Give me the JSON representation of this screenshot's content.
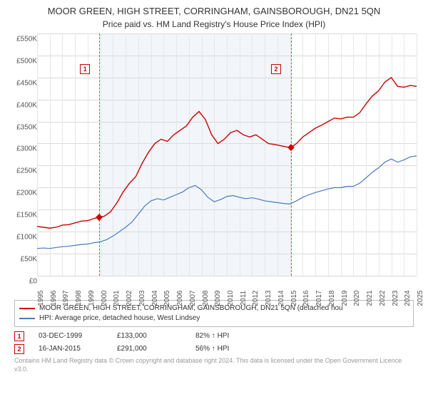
{
  "title": "MOOR GREEN, HIGH STREET, CORRINGHAM, GAINSBOROUGH, DN21 5QN",
  "subtitle": "Price paid vs. HM Land Registry's House Price Index (HPI)",
  "chart": {
    "type": "line",
    "ylim": [
      0,
      550
    ],
    "ytick_step": 50,
    "ylabel_prefix": "£",
    "ylabel_suffix": "K",
    "xrange": [
      1995,
      2025
    ],
    "xticks": [
      1995,
      1996,
      1997,
      1998,
      1999,
      2000,
      2001,
      2002,
      2003,
      2004,
      2005,
      2006,
      2007,
      2008,
      2009,
      2010,
      2011,
      2012,
      2013,
      2014,
      2015,
      2016,
      2017,
      2018,
      2019,
      2020,
      2021,
      2022,
      2023,
      2024,
      2025
    ],
    "grid_color": "#d9d9d9",
    "grid_color_v": "#e6e6e6",
    "background": "#ffffff",
    "shade_band": {
      "from": 1999.9,
      "to": 2015.05,
      "color": "#f2f6fa"
    },
    "series": [
      {
        "name": "MOOR GREEN, HIGH STREET, CORRINGHAM, GAINSBOROUGH, DN21 5QN (detached hou",
        "color": "#cc0000",
        "stroke_width": 1.4,
        "points": [
          [
            1995.0,
            112
          ],
          [
            1995.5,
            110
          ],
          [
            1996.0,
            108
          ],
          [
            1996.5,
            110
          ],
          [
            1997.0,
            115
          ],
          [
            1997.5,
            116
          ],
          [
            1998.0,
            120
          ],
          [
            1998.5,
            124
          ],
          [
            1999.0,
            125
          ],
          [
            1999.5,
            130
          ],
          [
            1999.9,
            133
          ],
          [
            2000.3,
            135
          ],
          [
            2000.8,
            145
          ],
          [
            2001.3,
            165
          ],
          [
            2001.8,
            190
          ],
          [
            2002.3,
            210
          ],
          [
            2002.8,
            225
          ],
          [
            2003.3,
            255
          ],
          [
            2003.8,
            280
          ],
          [
            2004.3,
            300
          ],
          [
            2004.8,
            310
          ],
          [
            2005.3,
            305
          ],
          [
            2005.8,
            320
          ],
          [
            2006.3,
            330
          ],
          [
            2006.8,
            340
          ],
          [
            2007.3,
            360
          ],
          [
            2007.8,
            373
          ],
          [
            2008.3,
            355
          ],
          [
            2008.8,
            320
          ],
          [
            2009.3,
            300
          ],
          [
            2009.8,
            310
          ],
          [
            2010.3,
            325
          ],
          [
            2010.8,
            330
          ],
          [
            2011.3,
            320
          ],
          [
            2011.8,
            315
          ],
          [
            2012.3,
            320
          ],
          [
            2012.8,
            310
          ],
          [
            2013.3,
            300
          ],
          [
            2013.8,
            298
          ],
          [
            2014.3,
            295
          ],
          [
            2014.8,
            292
          ],
          [
            2015.05,
            291
          ],
          [
            2015.5,
            300
          ],
          [
            2016.0,
            315
          ],
          [
            2016.5,
            325
          ],
          [
            2017.0,
            335
          ],
          [
            2017.5,
            342
          ],
          [
            2018.0,
            350
          ],
          [
            2018.5,
            358
          ],
          [
            2019.0,
            356
          ],
          [
            2019.5,
            360
          ],
          [
            2020.0,
            360
          ],
          [
            2020.5,
            370
          ],
          [
            2021.0,
            390
          ],
          [
            2021.5,
            408
          ],
          [
            2022.0,
            420
          ],
          [
            2022.5,
            440
          ],
          [
            2023.0,
            450
          ],
          [
            2023.5,
            430
          ],
          [
            2024.0,
            428
          ],
          [
            2024.5,
            432
          ],
          [
            2025.0,
            430
          ]
        ]
      },
      {
        "name": "HPI: Average price, detached house, West Lindsey",
        "color": "#4a7abc",
        "stroke_width": 1.2,
        "points": [
          [
            1995.0,
            62
          ],
          [
            1995.5,
            63
          ],
          [
            1996.0,
            62
          ],
          [
            1996.5,
            64
          ],
          [
            1997.0,
            66
          ],
          [
            1997.5,
            67
          ],
          [
            1998.0,
            69
          ],
          [
            1998.5,
            71
          ],
          [
            1999.0,
            72
          ],
          [
            1999.5,
            75
          ],
          [
            2000.0,
            77
          ],
          [
            2000.5,
            82
          ],
          [
            2001.0,
            90
          ],
          [
            2001.5,
            100
          ],
          [
            2002.0,
            110
          ],
          [
            2002.5,
            122
          ],
          [
            2003.0,
            140
          ],
          [
            2003.5,
            158
          ],
          [
            2004.0,
            170
          ],
          [
            2004.5,
            175
          ],
          [
            2005.0,
            172
          ],
          [
            2005.5,
            178
          ],
          [
            2006.0,
            184
          ],
          [
            2006.5,
            190
          ],
          [
            2007.0,
            200
          ],
          [
            2007.5,
            205
          ],
          [
            2008.0,
            195
          ],
          [
            2008.5,
            178
          ],
          [
            2009.0,
            168
          ],
          [
            2009.5,
            173
          ],
          [
            2010.0,
            180
          ],
          [
            2010.5,
            182
          ],
          [
            2011.0,
            178
          ],
          [
            2011.5,
            175
          ],
          [
            2012.0,
            177
          ],
          [
            2012.5,
            174
          ],
          [
            2013.0,
            170
          ],
          [
            2013.5,
            168
          ],
          [
            2014.0,
            166
          ],
          [
            2014.5,
            164
          ],
          [
            2015.0,
            163
          ],
          [
            2015.5,
            170
          ],
          [
            2016.0,
            178
          ],
          [
            2016.5,
            184
          ],
          [
            2017.0,
            189
          ],
          [
            2017.5,
            193
          ],
          [
            2018.0,
            197
          ],
          [
            2018.5,
            200
          ],
          [
            2019.0,
            200
          ],
          [
            2019.5,
            203
          ],
          [
            2020.0,
            203
          ],
          [
            2020.5,
            210
          ],
          [
            2021.0,
            222
          ],
          [
            2021.5,
            235
          ],
          [
            2022.0,
            245
          ],
          [
            2022.5,
            258
          ],
          [
            2023.0,
            265
          ],
          [
            2023.5,
            258
          ],
          [
            2024.0,
            263
          ],
          [
            2024.5,
            270
          ],
          [
            2025.0,
            272
          ]
        ]
      }
    ],
    "event_markers": [
      {
        "n": "1",
        "x": 1999.92,
        "y": 133,
        "box_x": 1998.4,
        "box_y": 480
      },
      {
        "n": "2",
        "x": 2015.05,
        "y": 291,
        "box_x": 2013.5,
        "box_y": 480
      }
    ]
  },
  "legend_items": [
    {
      "label": "MOOR GREEN, HIGH STREET, CORRINGHAM, GAINSBOROUGH, DN21 5QN (detached hou",
      "color": "#cc0000"
    },
    {
      "label": "HPI: Average price, detached house, West Lindsey",
      "color": "#4a7abc"
    }
  ],
  "events": [
    {
      "n": "1",
      "date": "03-DEC-1999",
      "price": "£133,000",
      "delta": "82% ↑ HPI"
    },
    {
      "n": "2",
      "date": "16-JAN-2015",
      "price": "£291,000",
      "delta": "56% ↑ HPI"
    }
  ],
  "footer": "Contains HM Land Registry data © Crown copyright and database right 2024. This data is licensed under the Open Government Licence v3.0."
}
